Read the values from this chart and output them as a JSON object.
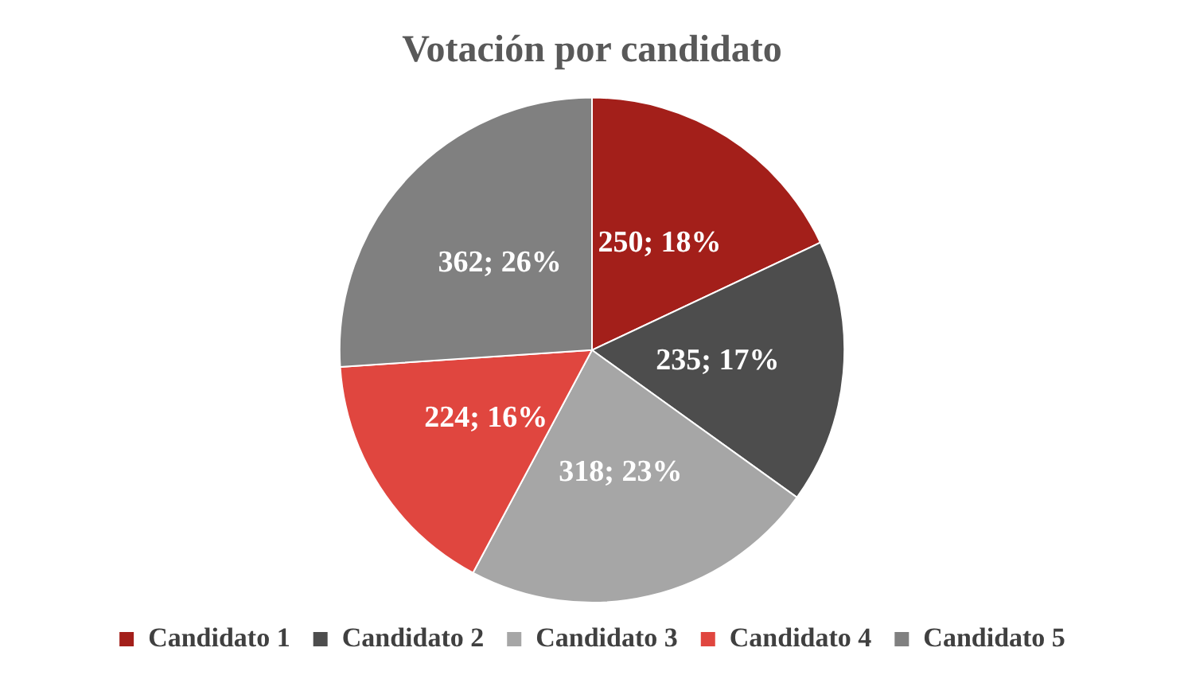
{
  "chart_data": {
    "type": "pie",
    "title": "Votación por candidato",
    "categories": [
      "Candidato 1",
      "Candidato 2",
      "Candidato 3",
      "Candidato 4",
      "Candidato 5"
    ],
    "values": [
      250,
      235,
      318,
      224,
      362
    ],
    "colors": [
      "#a31f1a",
      "#4d4d4d",
      "#a6a6a6",
      "#e0463f",
      "#808080"
    ],
    "value_labels": [
      "250; 18%",
      "235; 17%",
      "318; 23%",
      "224; 16%",
      "362; 26%"
    ],
    "legend": "bottom"
  }
}
